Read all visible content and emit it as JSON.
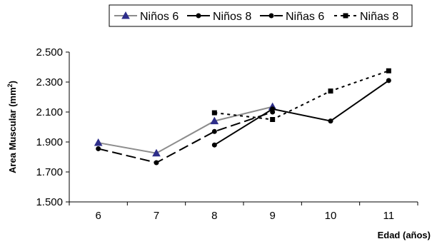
{
  "chart_data": {
    "type": "line",
    "title": "",
    "xlabel": "Edad (años)",
    "ylabel": "Area Muscular (mm²)",
    "ylabel_main": "Area Muscular (mm",
    "ylabel_sup": "2",
    "ylabel_close": ")",
    "categories": [
      "6",
      "7",
      "8",
      "9",
      "10",
      "11"
    ],
    "y_ticks": [
      "1.500",
      "1.700",
      "1.900",
      "2.100",
      "2.300",
      "2.500"
    ],
    "ylim": [
      1500,
      2500
    ],
    "grid": false,
    "legend_position": "top",
    "series": [
      {
        "name": "Niños 6",
        "color": "#8c8c8c",
        "marker": "triangle",
        "dash": "solid",
        "values": [
          1895,
          1825,
          2040,
          2135,
          null,
          null
        ]
      },
      {
        "name": "Niños 8",
        "color": "#000000",
        "marker": "circle",
        "dash": "solid",
        "values": [
          null,
          null,
          1880,
          2120,
          2040,
          2310
        ]
      },
      {
        "name": "Niñas 6",
        "color": "#000000",
        "marker": "circle",
        "dash": "longdash",
        "values": [
          1855,
          1762,
          1970,
          2100,
          null,
          null
        ]
      },
      {
        "name": "Niñas 8",
        "color": "#000000",
        "marker": "square",
        "dash": "dotted",
        "values": [
          null,
          null,
          2095,
          2050,
          2240,
          2375
        ]
      }
    ]
  }
}
